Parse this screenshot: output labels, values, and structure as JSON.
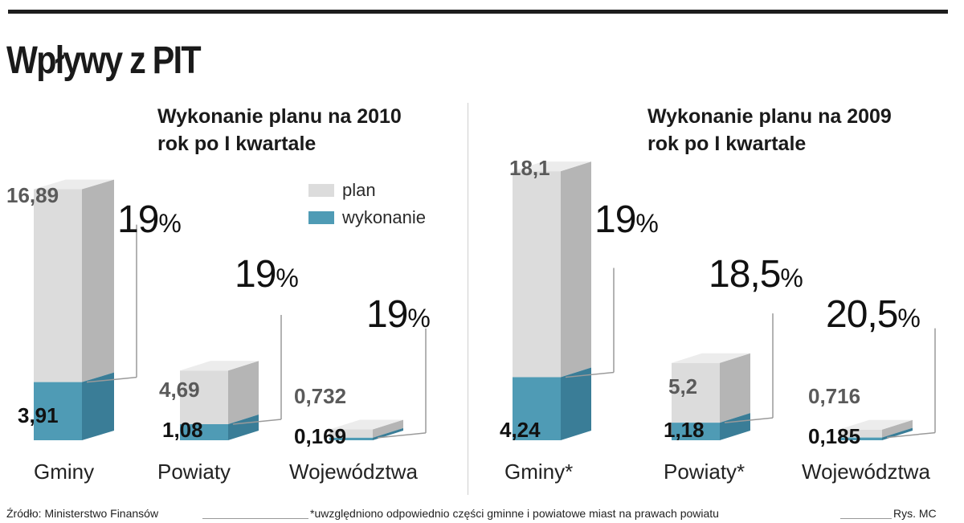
{
  "title": "Wpływy z PIT",
  "legend": {
    "plan": "plan",
    "execution": "wykonanie"
  },
  "colors": {
    "plan_front": "#dcdcdc",
    "plan_side": "#b5b5b5",
    "plan_top": "#ececec",
    "exec_front": "#4f9bb5",
    "exec_side": "#3a7d97",
    "exec_top": "#6fb3c9"
  },
  "chart_data": [
    {
      "type": "bar",
      "title": "Wykonanie planu na 2010 rok po I kwartale",
      "categories": [
        "Gminy",
        "Powiaty",
        "Województwa"
      ],
      "series": [
        {
          "name": "plan",
          "values": [
            16.89,
            4.69,
            0.732
          ],
          "labels": [
            "16,89",
            "4,69",
            "0,732"
          ]
        },
        {
          "name": "wykonanie",
          "values": [
            3.91,
            1.08,
            0.169
          ],
          "labels": [
            "3,91",
            "1,08",
            "0,169"
          ]
        }
      ],
      "percent_labels": [
        "19",
        "19",
        "19"
      ]
    },
    {
      "type": "bar",
      "title": "Wykonanie planu na 2009 rok po I kwartale",
      "categories": [
        "Gminy*",
        "Powiaty*",
        "Województwa"
      ],
      "series": [
        {
          "name": "plan",
          "values": [
            18.1,
            5.2,
            0.716
          ],
          "labels": [
            "18,1",
            "5,2",
            "0,716"
          ]
        },
        {
          "name": "wykonanie",
          "values": [
            4.24,
            1.18,
            0.185
          ],
          "labels": [
            "4,24",
            "1,18",
            "0,185"
          ]
        }
      ],
      "percent_labels": [
        "19",
        "18,5",
        "20,5"
      ]
    }
  ],
  "percent_sign": "%",
  "footer": {
    "source": "Źródło: Ministerstwo Finansów",
    "note": "*uwzględniono odpowiednio części gminne i powiatowe miast na prawach powiatu",
    "credit": "Rys. MC"
  }
}
